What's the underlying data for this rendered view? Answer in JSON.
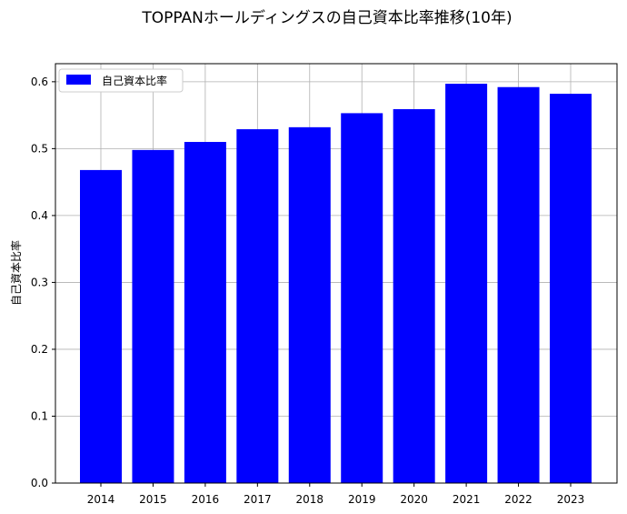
{
  "chart_data": {
    "type": "bar",
    "title": "TOPPANホールディングスの自己資本比率推移(10年)",
    "xlabel": "",
    "ylabel": "自己資本比率",
    "categories": [
      "2014",
      "2015",
      "2016",
      "2017",
      "2018",
      "2019",
      "2020",
      "2021",
      "2022",
      "2023"
    ],
    "series": [
      {
        "name": "自己資本比率",
        "color": "#0000ff",
        "values": [
          0.468,
          0.498,
          0.51,
          0.529,
          0.532,
          0.553,
          0.559,
          0.597,
          0.592,
          0.582
        ]
      }
    ],
    "ylim": [
      0,
      0.627
    ],
    "yticks": [
      "0.0",
      "0.1",
      "0.2",
      "0.3",
      "0.4",
      "0.5",
      "0.6"
    ],
    "grid": true,
    "legend_position": "top-left"
  }
}
